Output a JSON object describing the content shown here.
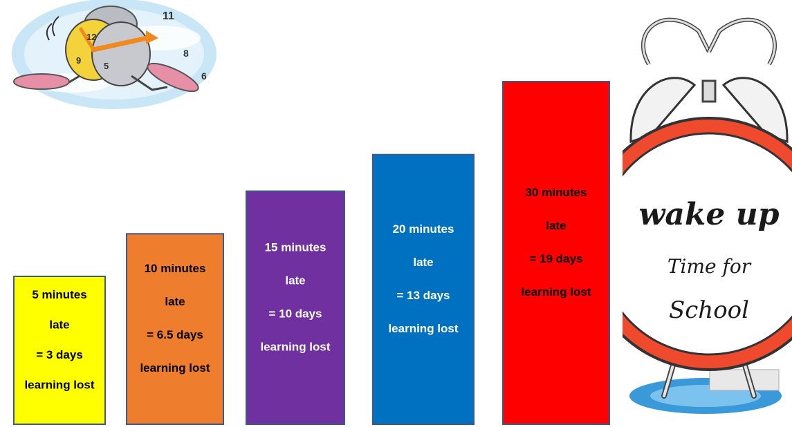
{
  "chart_data": {
    "type": "bar",
    "categories": [
      "5 minutes late",
      "10 minutes late",
      "15 minutes late",
      "20 minutes late",
      "30 minutes late"
    ],
    "values": [
      3,
      6.5,
      10,
      13,
      19
    ],
    "series": [
      {
        "values": [
          3,
          6.5,
          10,
          13,
          19
        ]
      }
    ],
    "colors": [
      "#ffff00",
      "#ee7d2e",
      "#7030a0",
      "#0070c0",
      "#ff0000"
    ],
    "label_colors": [
      "#000000",
      "#000000",
      "#ffffff",
      "#ffffff",
      "#000000"
    ],
    "labels": [
      [
        "5 minutes",
        "late",
        "= 3 days",
        "learning lost"
      ],
      [
        "10 minutes",
        "late",
        "= 6.5 days",
        "learning lost"
      ],
      [
        "15 minutes",
        "late",
        "= 10 days",
        "learning lost"
      ],
      [
        "20 minutes",
        "late",
        "= 13 days",
        "learning lost"
      ],
      [
        "30 minutes",
        "late",
        "= 19 days",
        "learning lost"
      ]
    ],
    "grid": false,
    "axes_visible": false
  },
  "clock_sign": {
    "line1": "wake up",
    "line2": "Time for",
    "line3": "School"
  },
  "illustrations": {
    "top_left": "running-clock-cartoon",
    "right": "alarm-clock-cartoon"
  }
}
